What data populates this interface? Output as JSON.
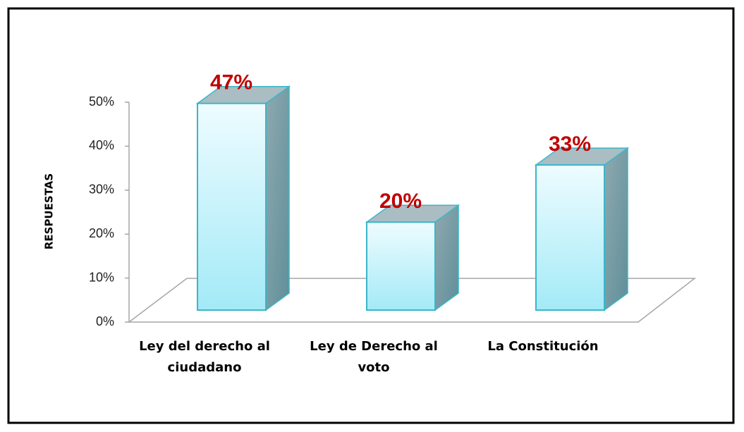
{
  "chart_data": {
    "type": "bar3d",
    "y_axis_label": "RESPUESTAS",
    "categories": [
      "Ley del derecho al ciudadano",
      "Ley de Derecho al voto",
      "La Constitución"
    ],
    "values": [
      47,
      20,
      33
    ],
    "value_labels": [
      "47%",
      "20%",
      "33%"
    ],
    "ylim": [
      0,
      50
    ],
    "yticks": [
      {
        "value": 0,
        "label": "0%"
      },
      {
        "value": 10,
        "label": "10%"
      },
      {
        "value": 20,
        "label": "20%"
      },
      {
        "value": 30,
        "label": "30%"
      },
      {
        "value": 40,
        "label": "40%"
      },
      {
        "value": 50,
        "label": "50%"
      }
    ],
    "color": "#bff3fb",
    "value_label_color": "#c00000"
  }
}
